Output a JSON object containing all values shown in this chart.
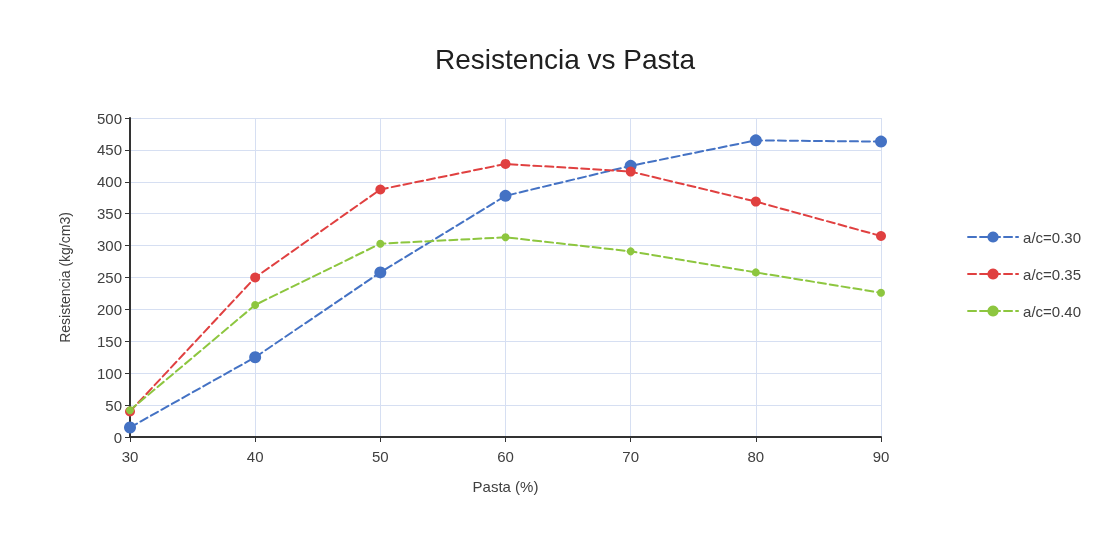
{
  "chart_data": {
    "type": "line",
    "title": "Resistencia vs Pasta",
    "xlabel": "Pasta (%)",
    "ylabel": "Resistencia (kg/cm3)",
    "x": [
      30,
      40,
      50,
      60,
      70,
      80,
      90
    ],
    "series": [
      {
        "name": "a/c=0.30",
        "color": "#4472c4",
        "values": [
          15,
          125,
          258,
          378,
          425,
          465,
          463
        ]
      },
      {
        "name": "a/c=0.35",
        "color": "#e04040",
        "values": [
          40,
          250,
          388,
          428,
          416,
          369,
          315
        ]
      },
      {
        "name": "a/c=0.40",
        "color": "#8dc63f",
        "values": [
          42,
          207,
          303,
          313,
          291,
          258,
          226
        ]
      }
    ],
    "xlim": [
      30,
      90
    ],
    "xticks": [
      30,
      40,
      50,
      60,
      70,
      80,
      90
    ],
    "ylim": [
      0,
      500
    ],
    "yticks": [
      0,
      50,
      100,
      150,
      200,
      250,
      300,
      350,
      400,
      450,
      500
    ],
    "grid": true,
    "legend": "right",
    "marker": "circle",
    "line_style": "dashed"
  }
}
